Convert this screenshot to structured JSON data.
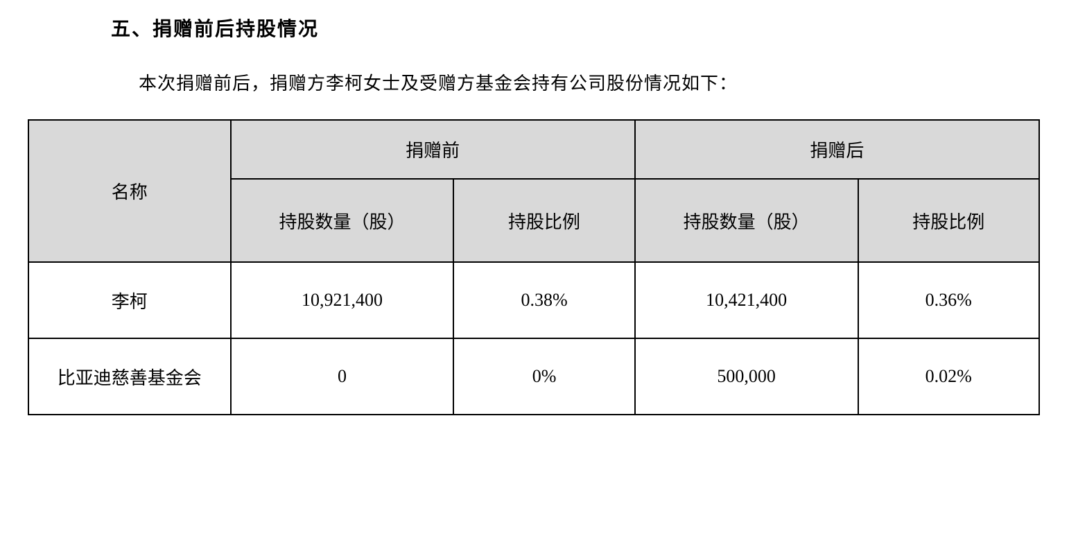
{
  "heading": "五、捐赠前后持股情况",
  "intro": "本次捐赠前后，捐赠方李柯女士及受赠方基金会持有公司股份情况如下：",
  "table": {
    "headers": {
      "name": "名称",
      "before": "捐赠前",
      "after": "捐赠后",
      "shares": "持股数量（股）",
      "ratio": "持股比例"
    },
    "rows": [
      {
        "name": "李柯",
        "before_shares": "10,921,400",
        "before_ratio": "0.38%",
        "after_shares": "10,421,400",
        "after_ratio": "0.36%"
      },
      {
        "name": "比亚迪慈善基金会",
        "before_shares": "0",
        "before_ratio": "0%",
        "after_shares": "500,000",
        "after_ratio": "0.02%"
      }
    ]
  }
}
